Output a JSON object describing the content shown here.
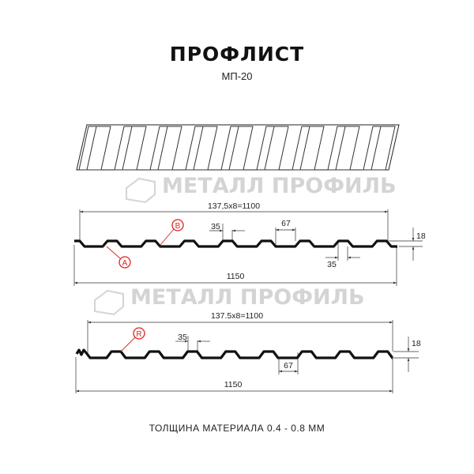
{
  "header": {
    "title": "ПРОФЛИСТ",
    "subtitle": "МП-20"
  },
  "watermark": {
    "text": "МЕТАЛЛ ПРОФИЛЬ"
  },
  "drawing_1": {
    "pitch_label": "137,5x8=1100",
    "width_label": "1150",
    "crest_label": "35",
    "trough_label": "35",
    "gap_label": "67",
    "height_label": "18",
    "callouts": [
      "A",
      "B"
    ]
  },
  "drawing_2": {
    "pitch_label": "137.5x8=1100",
    "width_label": "1150",
    "crest_label": "35",
    "gap_label": "67",
    "height_label": "18",
    "callouts": [
      "R"
    ]
  },
  "footer": {
    "thickness": "ТОЛЩИНА МАТЕРИАЛА 0.4 - 0.8 ММ"
  },
  "colors": {
    "callout": "#e02020",
    "profile": "#111111",
    "watermark": "#d4d4d4"
  }
}
